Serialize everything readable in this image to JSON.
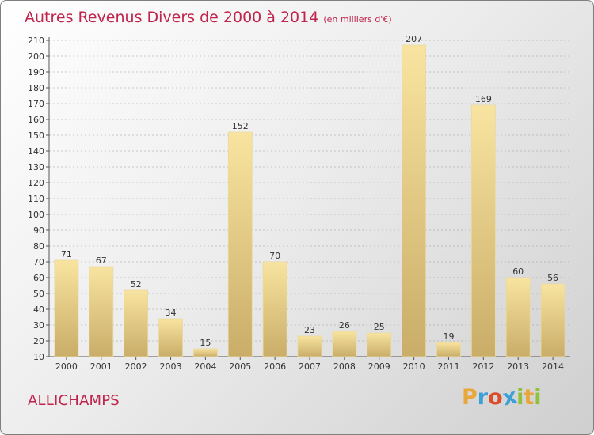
{
  "title": "Autres Revenus Divers de 2000 à 2014",
  "subtitle": "(en milliers d'€)",
  "place": "ALLICHAMPS",
  "logo": {
    "letters": [
      "P",
      "r",
      "o",
      "x",
      "i",
      "t",
      "i"
    ],
    "colors": [
      "#e8a73a",
      "#3aa0d8",
      "#d94d2b",
      "#3aa0d8",
      "#8fc13c",
      "#e8a73a",
      "#8fc13c"
    ]
  },
  "colors": {
    "accent": "#c0234b",
    "bar_light": "#f8e4a0",
    "bar_dark": "#c9ad68",
    "axis": "#555555",
    "grid": "#999999"
  },
  "chart_data": {
    "type": "bar",
    "title": "Autres Revenus Divers de 2000 à 2014",
    "subtitle": "(en milliers d'€)",
    "categories": [
      "2000",
      "2001",
      "2002",
      "2003",
      "2004",
      "2005",
      "2006",
      "2007",
      "2008",
      "2009",
      "2010",
      "2011",
      "2012",
      "2013",
      "2014"
    ],
    "values": [
      71,
      67,
      52,
      34,
      15,
      152,
      70,
      23,
      26,
      25,
      207,
      19,
      169,
      60,
      56
    ],
    "ylim": [
      10,
      210
    ],
    "yticks": [
      10,
      20,
      30,
      40,
      50,
      60,
      70,
      80,
      90,
      100,
      110,
      120,
      130,
      140,
      150,
      160,
      170,
      180,
      190,
      200,
      210
    ],
    "grid": "horizontal dashed"
  }
}
